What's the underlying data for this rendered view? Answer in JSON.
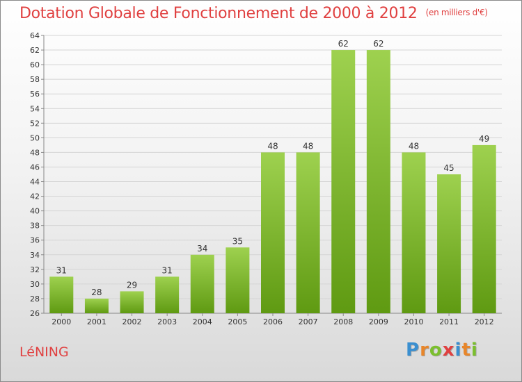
{
  "title": "Dotation Globale de Fonctionnement de 2000 à 2012",
  "subtitle": "(en milliers d'€)",
  "place": "LéNING",
  "brand": {
    "letters": [
      "P",
      "r",
      "o",
      "x",
      "i",
      "t",
      "i"
    ],
    "colors": [
      "#3a8fd0",
      "#e8862a",
      "#7bbf2e",
      "#e04040",
      "#3a8fd0",
      "#e8862a",
      "#7bbf2e"
    ]
  },
  "colors": {
    "bar_top": "#9ed14f",
    "bar_bottom": "#5f9a12",
    "title": "#e04040",
    "grid": "#d4d4d4"
  },
  "chart_data": {
    "type": "bar",
    "categories": [
      "2000",
      "2001",
      "2002",
      "2003",
      "2004",
      "2005",
      "2006",
      "2007",
      "2008",
      "2009",
      "2010",
      "2011",
      "2012"
    ],
    "values": [
      31,
      28,
      29,
      31,
      34,
      35,
      48,
      48,
      62,
      62,
      48,
      45,
      49
    ],
    "ylim": [
      26,
      64
    ],
    "ytick_step": 2,
    "grid": true
  }
}
